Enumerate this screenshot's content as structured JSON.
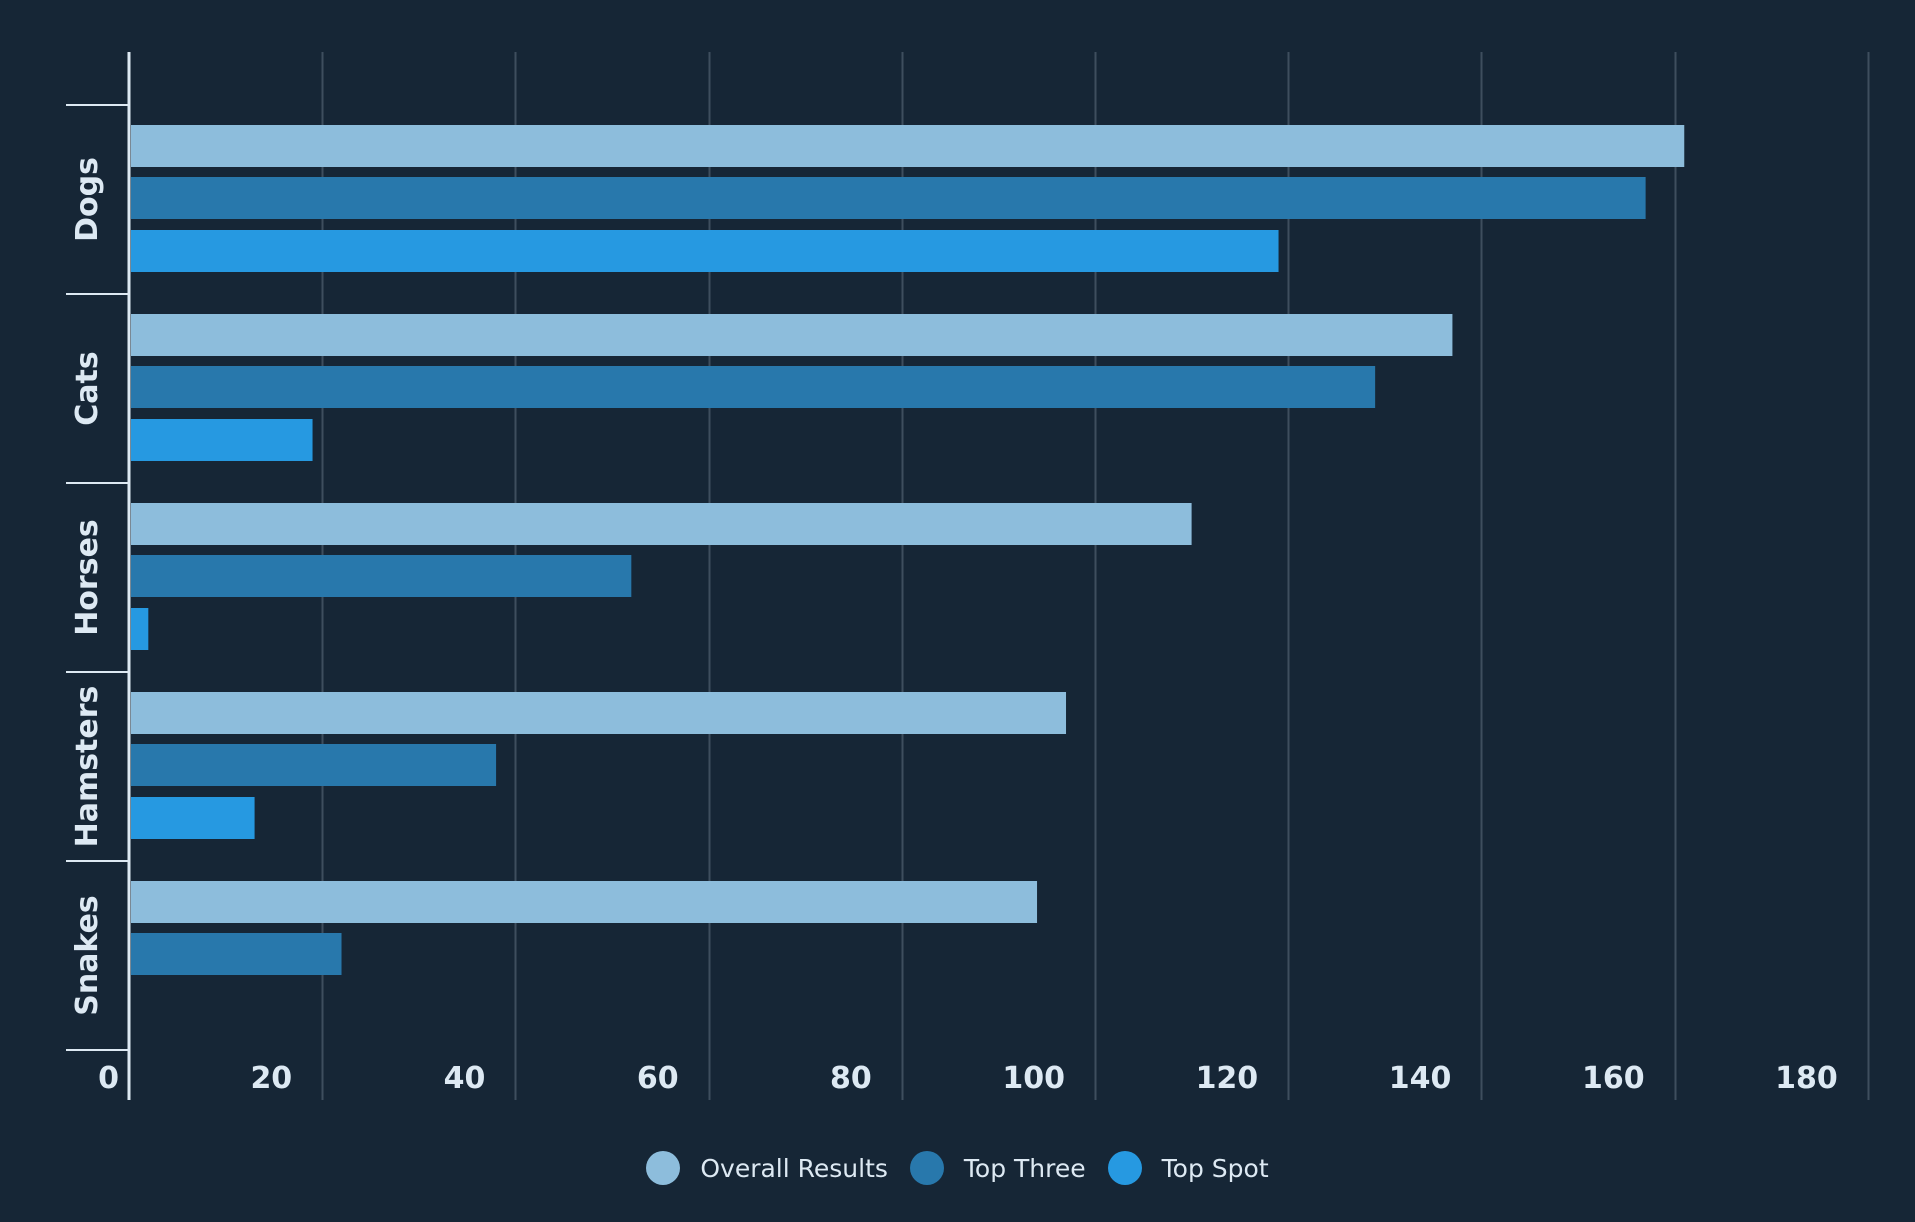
{
  "chart_data": {
    "type": "bar",
    "orientation": "horizontal",
    "categories": [
      "Dogs",
      "Cats",
      "Horses",
      "Hamsters",
      "Snakes"
    ],
    "series": [
      {
        "name": "Overall Results",
        "color": "#8dbddc",
        "values": [
          161,
          137,
          110,
          97,
          94
        ]
      },
      {
        "name": "Top Three",
        "color": "#2878ac",
        "values": [
          157,
          129,
          52,
          38,
          22
        ]
      },
      {
        "name": "Top Spot",
        "color": "#2699e1",
        "values": [
          119,
          19,
          2,
          13,
          0
        ]
      }
    ],
    "xlim": [
      0,
      180
    ],
    "x_ticks": [
      "0",
      "20",
      "40",
      "60",
      "80",
      "100",
      "120",
      "140",
      "160",
      "180"
    ],
    "grid": true,
    "legend_position": "bottom-center",
    "background": "#162636",
    "axis_color": "#dde9f3",
    "grid_color": "#3e4e5e"
  }
}
